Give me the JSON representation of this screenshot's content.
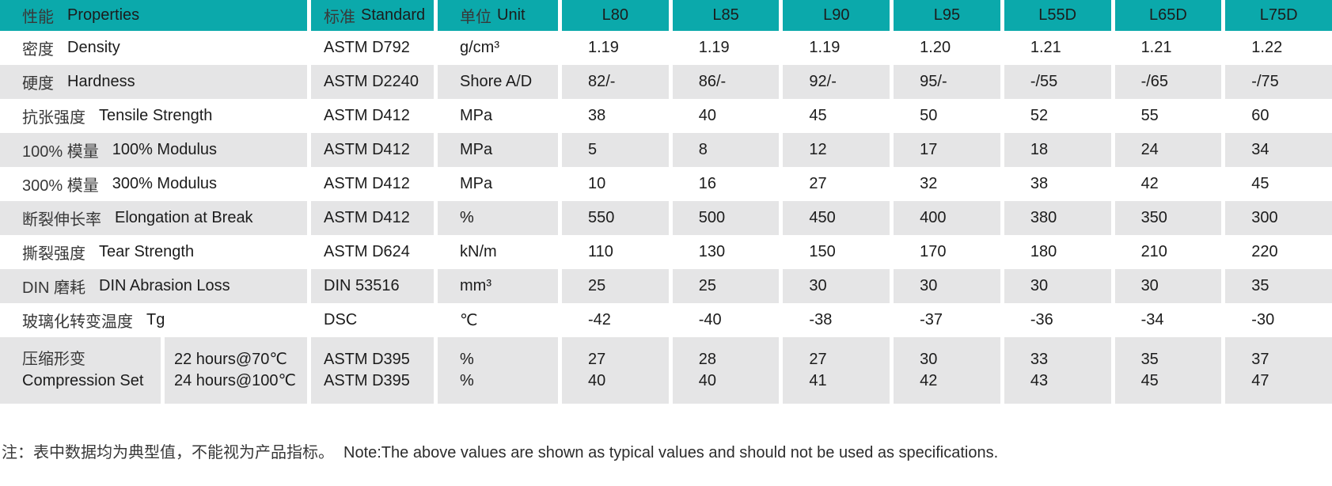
{
  "table": {
    "header": {
      "properties_zh": "性能",
      "properties_en": "Properties",
      "standard_zh": "标准",
      "standard_en": "Standard",
      "unit_zh": "单位",
      "unit_en": "Unit",
      "grades": [
        "L80",
        "L85",
        "L90",
        "L95",
        "L55D",
        "L65D",
        "L75D"
      ]
    },
    "rows": [
      {
        "zh": "密度",
        "en": "Density",
        "standard": "ASTM D792",
        "unit": "g/cm³",
        "values": [
          "1.19",
          "1.19",
          "1.19",
          "1.20",
          "1.21",
          "1.21",
          "1.22"
        ]
      },
      {
        "zh": "硬度",
        "en": "Hardness",
        "standard": "ASTM D2240",
        "unit": "Shore A/D",
        "values": [
          "82/-",
          "86/-",
          "92/-",
          "95/-",
          "-/55",
          "-/65",
          "-/75"
        ]
      },
      {
        "zh": "抗张强度",
        "en": "Tensile Strength",
        "standard": "ASTM D412",
        "unit": "MPa",
        "values": [
          "38",
          "40",
          "45",
          "50",
          "52",
          "55",
          "60"
        ]
      },
      {
        "zh": "100% 模量",
        "en": "100% Modulus",
        "standard": "ASTM D412",
        "unit": "MPa",
        "values": [
          "5",
          "8",
          "12",
          "17",
          "18",
          "24",
          "34"
        ]
      },
      {
        "zh": "300% 模量",
        "en": "300% Modulus",
        "standard": "ASTM D412",
        "unit": "MPa",
        "values": [
          "10",
          "16",
          "27",
          "32",
          "38",
          "42",
          "45"
        ]
      },
      {
        "zh": "断裂伸长率",
        "en": "Elongation at Break",
        "standard": "ASTM D412",
        "unit": "%",
        "values": [
          "550",
          "500",
          "450",
          "400",
          "380",
          "350",
          "300"
        ]
      },
      {
        "zh": "撕裂强度",
        "en": "Tear Strength",
        "standard": "ASTM D624",
        "unit": "kN/m",
        "values": [
          "110",
          "130",
          "150",
          "170",
          "180",
          "210",
          "220"
        ]
      },
      {
        "zh": "DIN 磨耗",
        "en": "DIN Abrasion Loss",
        "standard": "DIN 53516",
        "unit": "mm³",
        "values": [
          "25",
          "25",
          "30",
          "30",
          "30",
          "30",
          "35"
        ]
      },
      {
        "zh": "玻璃化转变温度",
        "en": "Tg",
        "standard": "DSC",
        "unit": "℃",
        "values": [
          "-42",
          "-40",
          "-38",
          "-37",
          "-36",
          "-34",
          "-30"
        ]
      }
    ],
    "compression": {
      "zh": "压缩形变",
      "en": "Compression Set",
      "conditions": [
        "22 hours@70℃",
        "24 hours@100℃"
      ],
      "standards": [
        "ASTM D395",
        "ASTM D395"
      ],
      "units": [
        "%",
        "%"
      ],
      "values_line1": [
        "27",
        "28",
        "27",
        "30",
        "33",
        "35",
        "37"
      ],
      "values_line2": [
        "40",
        "40",
        "41",
        "42",
        "43",
        "45",
        "47"
      ]
    }
  },
  "note": {
    "zh": "注：表中数据均为典型值，不能视为产品指标。",
    "en": "Note:The above values are shown as typical values and should not be used as specifications."
  },
  "colors": {
    "header_bg": "#0ba9ab",
    "stripe_bg": "#e5e5e6",
    "text": "#1c1c1c"
  }
}
